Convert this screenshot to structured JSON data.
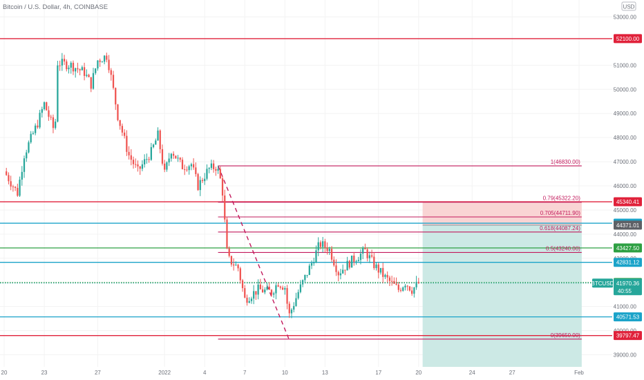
{
  "header": {
    "title": "Bitcoin / U.S. Dollar, 4h, COINBASE",
    "currency": "USD"
  },
  "colors": {
    "up": "#26a69a",
    "down": "#ef5350",
    "red_line": "#e0213a",
    "fib": "#c2185b",
    "blue_line": "#1aa3c9",
    "green_line": "#2ea043",
    "dark_badge": "#5d6066",
    "stop_zone": "#f9d4d4",
    "target_zone": "#cce9e5",
    "axis_text": "#6b6f78",
    "grid": "#f3f3f3"
  },
  "chart_data": {
    "type": "candlestick",
    "symbol": "BTCUSD",
    "interval": "4h",
    "y_axis": {
      "min": 38500,
      "max": 53300,
      "ticks": [
        "39000.00",
        "40000.00",
        "41000.00",
        "42000.00",
        "43000.00",
        "44000.00",
        "45000.00",
        "46000.00",
        "47000.00",
        "48000.00",
        "49000.00",
        "50000.00",
        "51000.00",
        "53000.00"
      ]
    },
    "x_axis": {
      "labels": [
        {
          "label": "20",
          "day": 0
        },
        {
          "label": "23",
          "day": 3
        },
        {
          "label": "27",
          "day": 7
        },
        {
          "label": "2022",
          "day": 12
        },
        {
          "label": "4",
          "day": 15
        },
        {
          "label": "7",
          "day": 18
        },
        {
          "label": "10",
          "day": 21
        },
        {
          "label": "13",
          "day": 24
        },
        {
          "label": "17",
          "day": 28
        },
        {
          "label": "20",
          "day": 31
        },
        {
          "label": "24",
          "day": 35
        },
        {
          "label": "27",
          "day": 38
        },
        {
          "label": "Feb",
          "day": 43
        }
      ]
    },
    "anchors": [
      {
        "day": 0,
        "price": 46600
      },
      {
        "day": 1,
        "price": 45700
      },
      {
        "day": 1.5,
        "price": 47300
      },
      {
        "day": 2.5,
        "price": 48600
      },
      {
        "day": 3,
        "price": 49400
      },
      {
        "day": 3.8,
        "price": 48200
      },
      {
        "day": 4,
        "price": 51100
      },
      {
        "day": 5,
        "price": 51000
      },
      {
        "day": 6,
        "price": 50700
      },
      {
        "day": 6.5,
        "price": 50200
      },
      {
        "day": 7,
        "price": 51200
      },
      {
        "day": 7.7,
        "price": 51400
      },
      {
        "day": 8,
        "price": 50500
      },
      {
        "day": 8.5,
        "price": 48900
      },
      {
        "day": 9.3,
        "price": 47300
      },
      {
        "day": 10,
        "price": 46600
      },
      {
        "day": 11,
        "price": 47400
      },
      {
        "day": 11.5,
        "price": 48100
      },
      {
        "day": 12,
        "price": 46500
      },
      {
        "day": 12.5,
        "price": 47500
      },
      {
        "day": 13.3,
        "price": 46800
      },
      {
        "day": 14,
        "price": 46900
      },
      {
        "day": 14.5,
        "price": 46000
      },
      {
        "day": 15.3,
        "price": 46700
      },
      {
        "day": 15.9,
        "price": 46800
      },
      {
        "day": 16.3,
        "price": 46000
      },
      {
        "day": 16.7,
        "price": 43000
      },
      {
        "day": 17.5,
        "price": 42600
      },
      {
        "day": 18,
        "price": 41300
      },
      {
        "day": 19,
        "price": 41700
      },
      {
        "day": 20,
        "price": 41600
      },
      {
        "day": 20.5,
        "price": 42000
      },
      {
        "day": 21,
        "price": 41800
      },
      {
        "day": 21.3,
        "price": 40600
      },
      {
        "day": 22,
        "price": 41600
      },
      {
        "day": 23,
        "price": 42800
      },
      {
        "day": 23.6,
        "price": 43600
      },
      {
        "day": 24.3,
        "price": 43400
      },
      {
        "day": 25,
        "price": 42400
      },
      {
        "day": 26,
        "price": 42900
      },
      {
        "day": 27,
        "price": 43300
      },
      {
        "day": 27.7,
        "price": 42700
      },
      {
        "day": 28.5,
        "price": 42200
      },
      {
        "day": 29.5,
        "price": 41700
      },
      {
        "day": 30,
        "price": 42000
      },
      {
        "day": 30.5,
        "price": 41700
      },
      {
        "day": 31,
        "price": 41970
      }
    ],
    "levels": [
      {
        "name": "52100",
        "price": 52100,
        "label": "52100.00",
        "color": "#e0213a",
        "style": "solid"
      },
      {
        "name": "45340",
        "price": 45340.41,
        "label": "45340.41",
        "color": "#e0213a",
        "style": "solid"
      },
      {
        "name": "44453",
        "price": 44453.22,
        "label": "44453.22",
        "color": "#1aa3c9",
        "style": "solid"
      },
      {
        "name": "43427",
        "price": 43427.5,
        "label": "43427.50",
        "color": "#2ea043",
        "style": "solid"
      },
      {
        "name": "42831",
        "price": 42831.12,
        "label": "42831.12",
        "color": "#1aa3c9",
        "style": "solid"
      },
      {
        "name": "41995",
        "price": 41995.0,
        "label": "41995.00",
        "color": "#2ea043",
        "style": "dotted"
      },
      {
        "name": "40571",
        "price": 40571.53,
        "label": "40571.53",
        "color": "#1aa3c9",
        "style": "solid"
      },
      {
        "name": "39797",
        "price": 39797.47,
        "label": "39797.47",
        "color": "#e0213a",
        "style": "solid"
      }
    ],
    "current_price": {
      "symbol": "BTCUSD",
      "price": 41970.36,
      "label": "41970.36",
      "countdown": "40:55"
    },
    "entry_badge": {
      "price": 44371.01,
      "label": "44371.01"
    },
    "fibonacci": [
      {
        "price": 46830.0,
        "label": "1(46830.00)"
      },
      {
        "price": 45322.2,
        "label": "0.79(45322.20)"
      },
      {
        "price": 44711.9,
        "label": "0.705(44711.90)"
      },
      {
        "price": 44087.24,
        "label": "0.618(44087.24)"
      },
      {
        "price": 43240.0,
        "label": "0.5(43240.00)"
      },
      {
        "price": 39650.0,
        "label": "0(39650.00)"
      }
    ],
    "fib_range": {
      "start_day": 16.0,
      "end_day": 43.2
    },
    "swing_line": {
      "from_day": 16.0,
      "from_price": 46830,
      "to_day": 21.3,
      "to_price": 39650
    },
    "position": {
      "start_day": 31.3,
      "end_day": 43.2,
      "top_price": 45340.41,
      "entry_price": 44371.01,
      "bottom_price": 38500
    }
  }
}
